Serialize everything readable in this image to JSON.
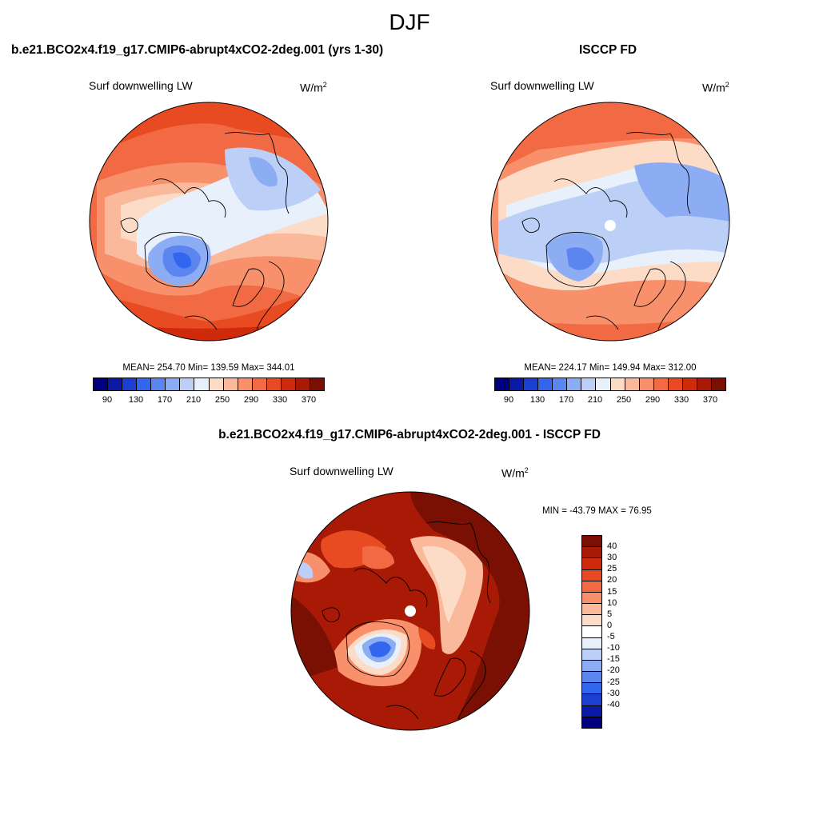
{
  "season": "DJF",
  "panel1": {
    "title": "b.e21.BCO2x4.f19_g17.CMIP6-abrupt4xCO2-2deg.001 (yrs 1-30)",
    "variable": "Surf downwelling LW",
    "units": "W/m",
    "units_sup": "2",
    "stats": "MEAN= 254.70  Min= 139.59  Max= 344.01"
  },
  "panel2": {
    "title": "ISCCP FD",
    "variable": "Surf downwelling LW",
    "units": "W/m",
    "units_sup": "2",
    "stats": "MEAN= 224.17  Min= 149.94  Max= 312.00"
  },
  "panel3": {
    "title": "b.e21.BCO2x4.f19_g17.CMIP6-abrupt4xCO2-2deg.001 - ISCCP FD",
    "variable": "Surf downwelling LW",
    "units": "W/m",
    "units_sup": "2",
    "stats": "MIN = -43.79 MAX =  76.95"
  },
  "abs_colorbar": {
    "colors": [
      "#00007f",
      "#0a1aa6",
      "#1b3fd0",
      "#3366ee",
      "#5b86f0",
      "#8cacf3",
      "#bcd0f7",
      "#e8f0fb",
      "#fddcc7",
      "#fbb99c",
      "#f7906b",
      "#f26a43",
      "#e84a22",
      "#cf2a0c",
      "#a81a05",
      "#7a0f03"
    ],
    "ticks": [
      "90",
      "130",
      "170",
      "210",
      "250",
      "290",
      "330",
      "370"
    ]
  },
  "diff_colorbar": {
    "colors": [
      "#7a0f03",
      "#a81a05",
      "#cf2a0c",
      "#e84a22",
      "#f26a43",
      "#f7906b",
      "#fbb99c",
      "#fddcc7",
      "#ffffff",
      "#e8f0fb",
      "#bcd0f7",
      "#8cacf3",
      "#5b86f0",
      "#3366ee",
      "#1b3fd0",
      "#0a1aa6",
      "#00007f"
    ],
    "ticks": [
      "40",
      "30",
      "25",
      "20",
      "15",
      "10",
      "5",
      "0",
      "-5",
      "-10",
      "-15",
      "-20",
      "-25",
      "-30",
      "-40"
    ]
  }
}
